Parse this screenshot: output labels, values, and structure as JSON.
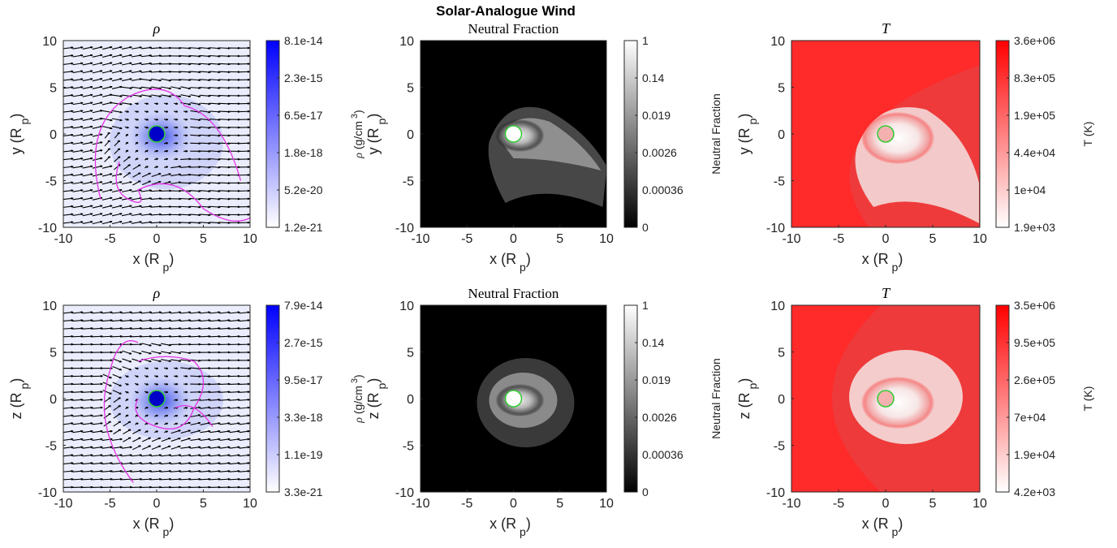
{
  "figure": {
    "suptitle": "Solar-Analogue Wind"
  },
  "colors": {
    "density": "#0000ff",
    "temperature": "#ff0000",
    "contour": "#e633e6",
    "planet_marker": "#33cc33",
    "arrows": "#000000"
  },
  "chart_data": [
    {
      "type": "heatmap",
      "panel": "density-xy",
      "title": "ρ",
      "xlabel": "x (R p)",
      "ylabel": "y (R p)",
      "xlim": [
        -10,
        10
      ],
      "ylim": [
        -10,
        10
      ],
      "xticks": [
        -10,
        -5,
        0,
        5,
        10
      ],
      "yticks": [
        -10,
        -5,
        0,
        5,
        10
      ],
      "xtick_labels": [
        "-10",
        "-5",
        "0",
        "5",
        "10"
      ],
      "ytick_labels": [
        "-10",
        "-5",
        "0",
        "5",
        "10"
      ],
      "colormap": "white-blue",
      "scale": "log",
      "colorbar": {
        "label": "ρ (g/cm 3)",
        "ticks": [
          "8.1e-14",
          "2.3e-15",
          "6.5e-17",
          "1.8e-18",
          "5.2e-20",
          "1.2e-21"
        ]
      },
      "overlays": [
        "velocity quiver",
        "magenta contour"
      ],
      "planet_center": [
        0,
        0
      ]
    },
    {
      "type": "heatmap",
      "panel": "neutral-xy",
      "title": "Neutral Fraction",
      "xlabel": "x (R p)",
      "ylabel": "y (R p)",
      "xlim": [
        -10,
        10
      ],
      "ylim": [
        -10,
        10
      ],
      "xticks": [
        -10,
        -5,
        0,
        5,
        10
      ],
      "yticks": [
        -10,
        -5,
        0,
        5,
        10
      ],
      "xtick_labels": [
        "-10",
        "-5",
        "0",
        "5",
        "10"
      ],
      "ytick_labels": [
        "-10",
        "-5",
        "0",
        "5",
        "10"
      ],
      "colormap": "gray",
      "scale": "log",
      "colorbar": {
        "label": "Neutral Fraction",
        "ticks": [
          "1",
          "0.14",
          "0.019",
          "0.0026",
          "0.00036",
          "0"
        ]
      },
      "planet_center": [
        0,
        0
      ]
    },
    {
      "type": "heatmap",
      "panel": "temperature-xy",
      "title": "T",
      "xlabel": "x (R p)",
      "ylabel": "y (R p)",
      "xlim": [
        -10,
        10
      ],
      "ylim": [
        -10,
        10
      ],
      "xticks": [
        -10,
        -5,
        0,
        5,
        10
      ],
      "yticks": [
        -10,
        -5,
        0,
        5,
        10
      ],
      "xtick_labels": [
        "-10",
        "-5",
        "0",
        "5",
        "10"
      ],
      "ytick_labels": [
        "-10",
        "-5",
        "0",
        "5",
        "10"
      ],
      "colormap": "white-red",
      "scale": "log",
      "colorbar": {
        "label": "T (K)",
        "ticks": [
          "3.6e+06",
          "8.3e+05",
          "1.9e+05",
          "4.4e+04",
          "1e+04",
          "1.9e+03"
        ]
      },
      "planet_center": [
        0,
        0
      ]
    },
    {
      "type": "heatmap",
      "panel": "density-xz",
      "title": "ρ",
      "xlabel": "x (R p)",
      "ylabel": "z (R p)",
      "xlim": [
        -10,
        10
      ],
      "ylim": [
        -10,
        10
      ],
      "xticks": [
        -10,
        -5,
        0,
        5,
        10
      ],
      "yticks": [
        -10,
        -5,
        0,
        5,
        10
      ],
      "xtick_labels": [
        "-10",
        "-5",
        "0",
        "5",
        "10"
      ],
      "ytick_labels": [
        "-10",
        "-5",
        "0",
        "5",
        "10"
      ],
      "colormap": "white-blue",
      "scale": "log",
      "colorbar": {
        "label": "ρ (g/cm 3)",
        "ticks": [
          "7.9e-14",
          "2.7e-15",
          "9.5e-17",
          "3.3e-18",
          "1.1e-19",
          "3.3e-21"
        ]
      },
      "overlays": [
        "velocity quiver",
        "magenta contour"
      ],
      "planet_center": [
        0,
        0
      ]
    },
    {
      "type": "heatmap",
      "panel": "neutral-xz",
      "title": "Neutral Fraction",
      "xlabel": "x (R p)",
      "ylabel": "z (R p)",
      "xlim": [
        -10,
        10
      ],
      "ylim": [
        -10,
        10
      ],
      "xticks": [
        -10,
        -5,
        0,
        5,
        10
      ],
      "yticks": [
        -10,
        -5,
        0,
        5,
        10
      ],
      "xtick_labels": [
        "-10",
        "-5",
        "0",
        "5",
        "10"
      ],
      "ytick_labels": [
        "-10",
        "-5",
        "0",
        "5",
        "10"
      ],
      "colormap": "gray",
      "scale": "log",
      "colorbar": {
        "label": "Neutral Fraction",
        "ticks": [
          "1",
          "0.14",
          "0.019",
          "0.0026",
          "0.00036",
          "0"
        ]
      },
      "planet_center": [
        0,
        0
      ]
    },
    {
      "type": "heatmap",
      "panel": "temperature-xz",
      "title": "T",
      "xlabel": "x (R p)",
      "ylabel": "z (R p)",
      "xlim": [
        -10,
        10
      ],
      "ylim": [
        -10,
        10
      ],
      "xticks": [
        -10,
        -5,
        0,
        5,
        10
      ],
      "yticks": [
        -10,
        -5,
        0,
        5,
        10
      ],
      "xtick_labels": [
        "-10",
        "-5",
        "0",
        "5",
        "10"
      ],
      "ytick_labels": [
        "-10",
        "-5",
        "0",
        "5",
        "10"
      ],
      "colormap": "white-red",
      "scale": "log",
      "colorbar": {
        "label": "T (K)",
        "ticks": [
          "3.5e+06",
          "9.5e+05",
          "2.6e+05",
          "7e+04",
          "1.9e+04",
          "4.2e+03"
        ]
      },
      "planet_center": [
        0,
        0
      ]
    }
  ]
}
